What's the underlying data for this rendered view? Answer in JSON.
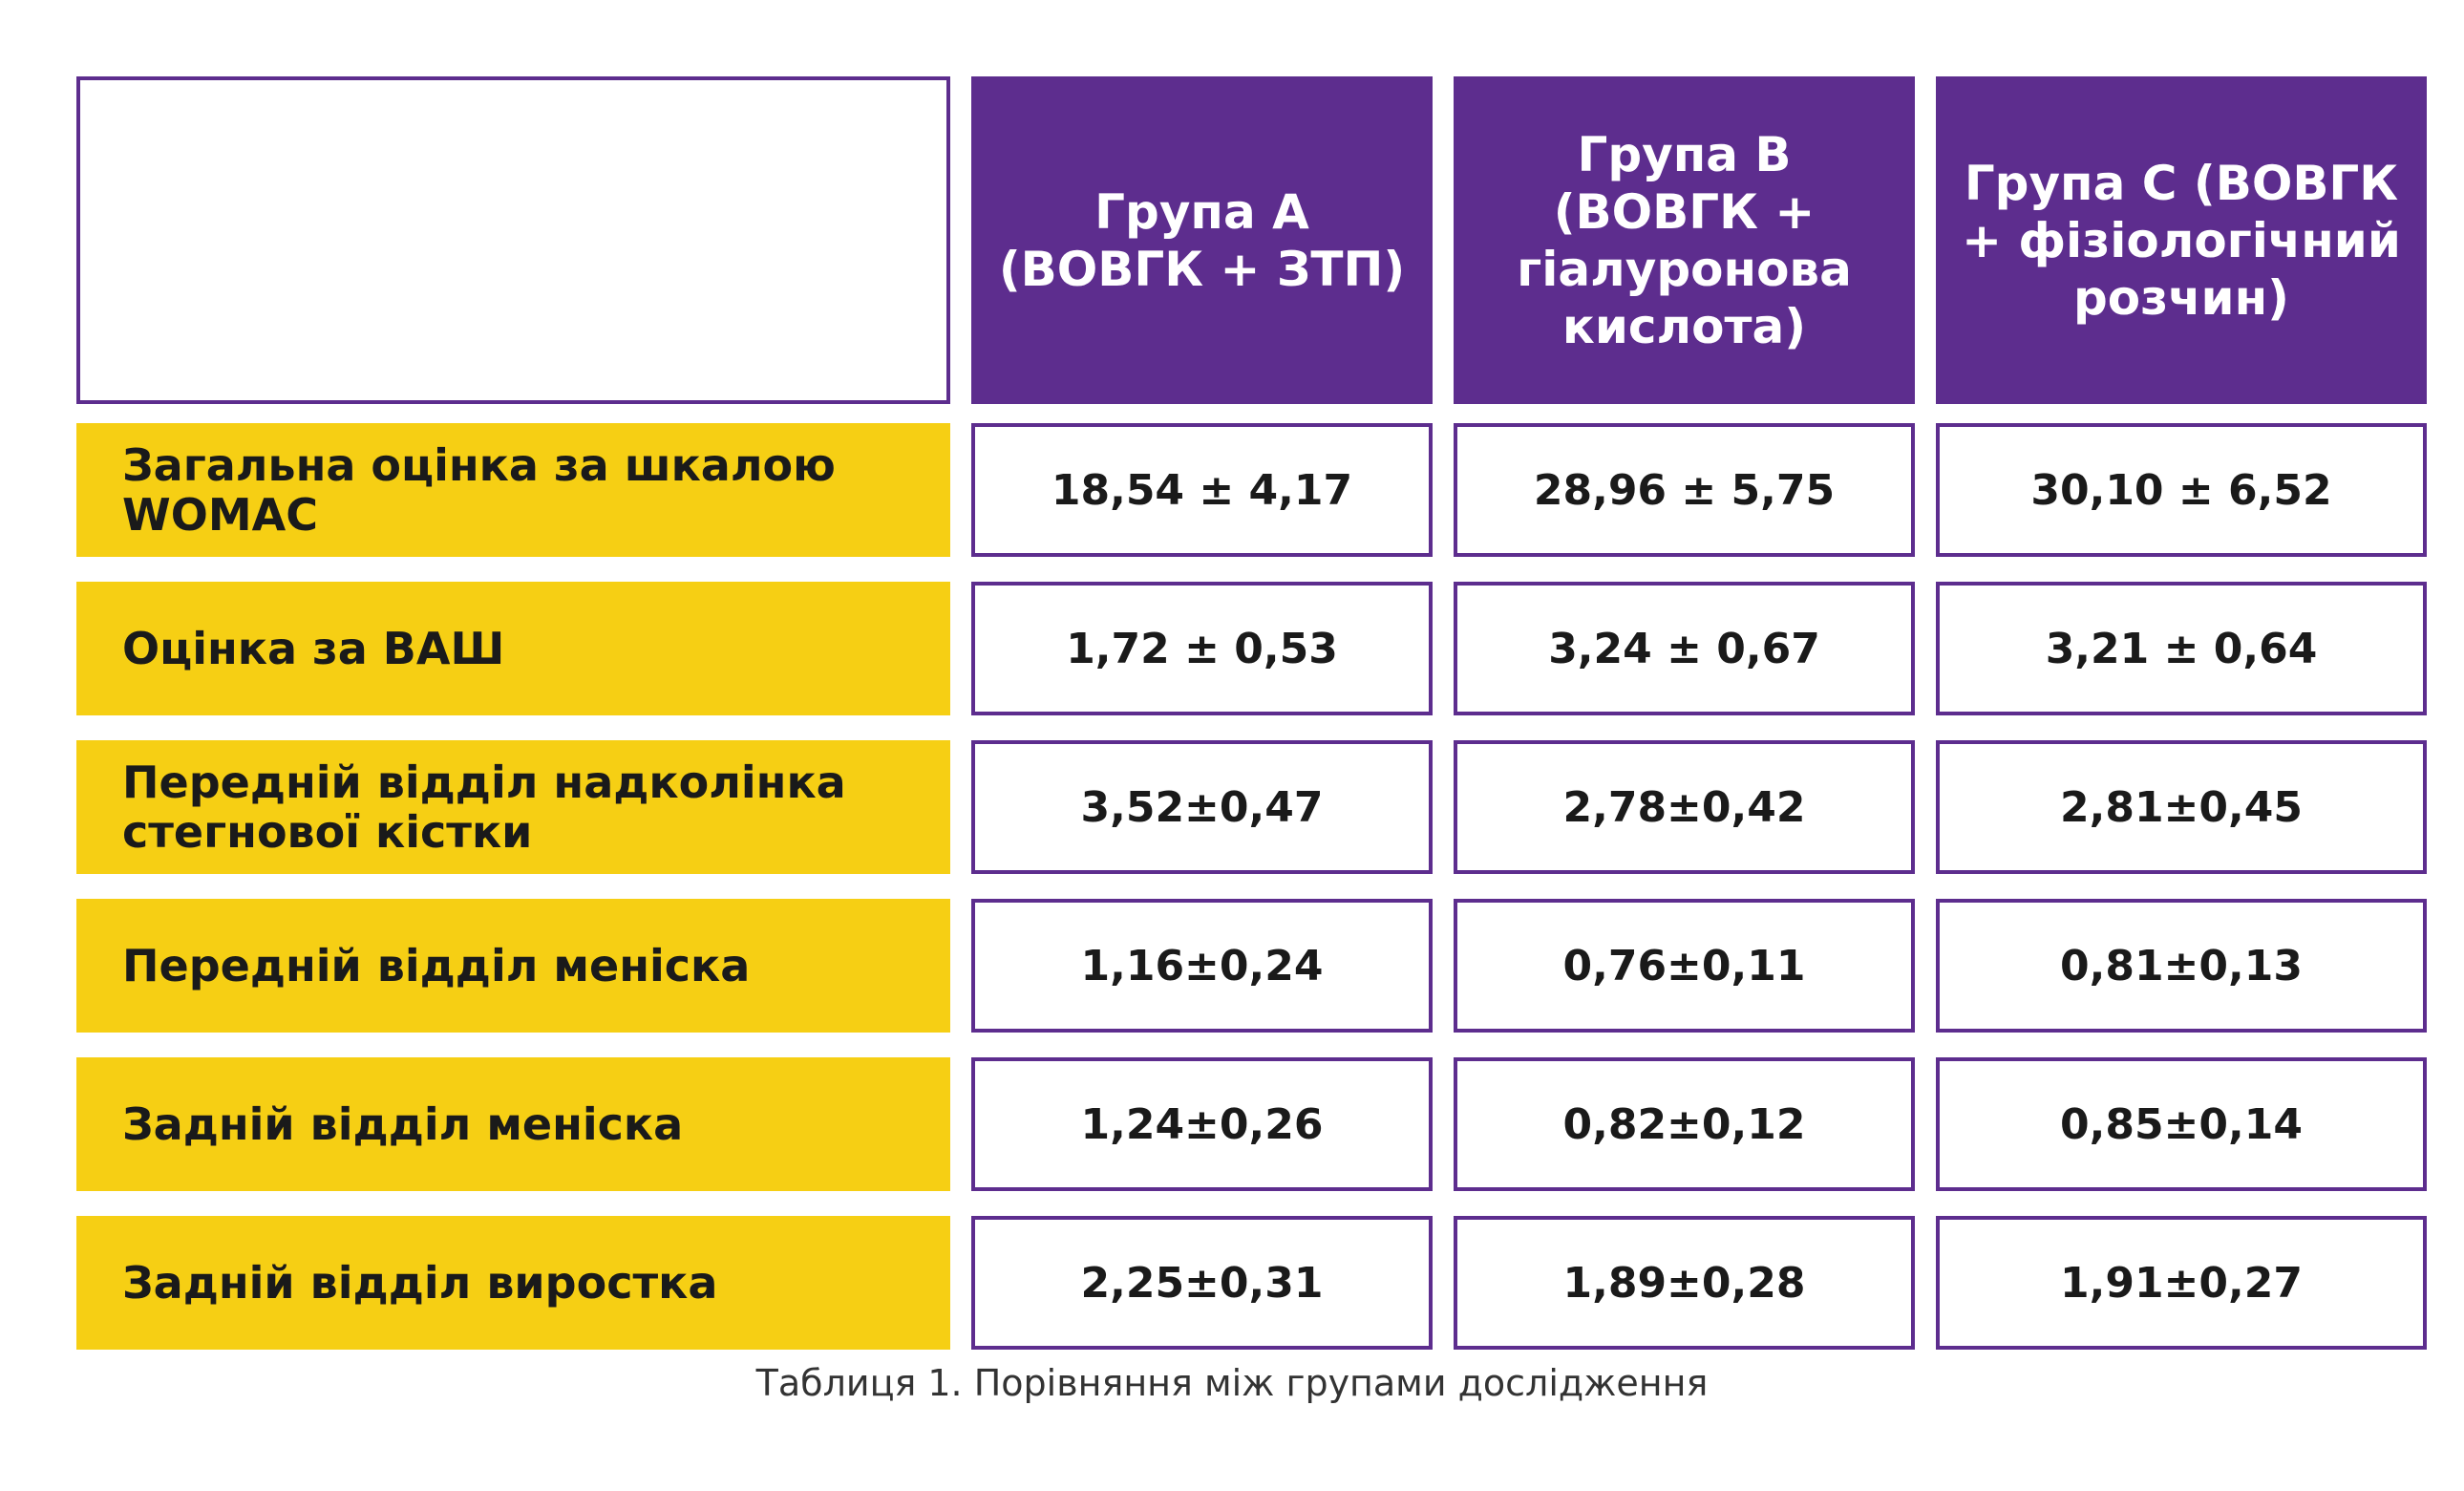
{
  "columns": [
    "Група А (ВОВГК + ЗТП)",
    "Група В (ВОВГК + гіалуронова кислота)",
    "Група С (ВОВГК + фізіологічний розчин)"
  ],
  "rows": [
    {
      "label": "Загальна оцінка за шкалою WOMAC",
      "values": [
        "18,54 ± 4,17",
        "28,96 ± 5,75",
        "30,10 ± 6,52"
      ]
    },
    {
      "label": "Оцінка за ВАШ",
      "values": [
        "1,72 ± 0,53",
        "3,24 ± 0,67",
        "3,21 ± 0,64"
      ]
    },
    {
      "label": "Передній відділ надколінка стегнової кістки",
      "values": [
        "3,52±0,47",
        "2,78±0,42",
        "2,81±0,45"
      ]
    },
    {
      "label": "Передній відділ меніска",
      "values": [
        "1,16±0,24",
        "0,76±0,11",
        "0,81±0,13"
      ]
    },
    {
      "label": "Задній відділ меніска",
      "values": [
        "1,24±0,26",
        "0,82±0,12",
        "0,85±0,14"
      ]
    },
    {
      "label": "Задній відділ виростка",
      "values": [
        "2,25±0,31",
        "1,89±0,28",
        "1,91±0,27"
      ]
    }
  ],
  "caption": "Таблиця 1. Порівняння між групами дослідження",
  "colors": {
    "header_bg": "#5d2d8e",
    "label_bg": "#f6cf14",
    "border": "#5d2d8e"
  }
}
